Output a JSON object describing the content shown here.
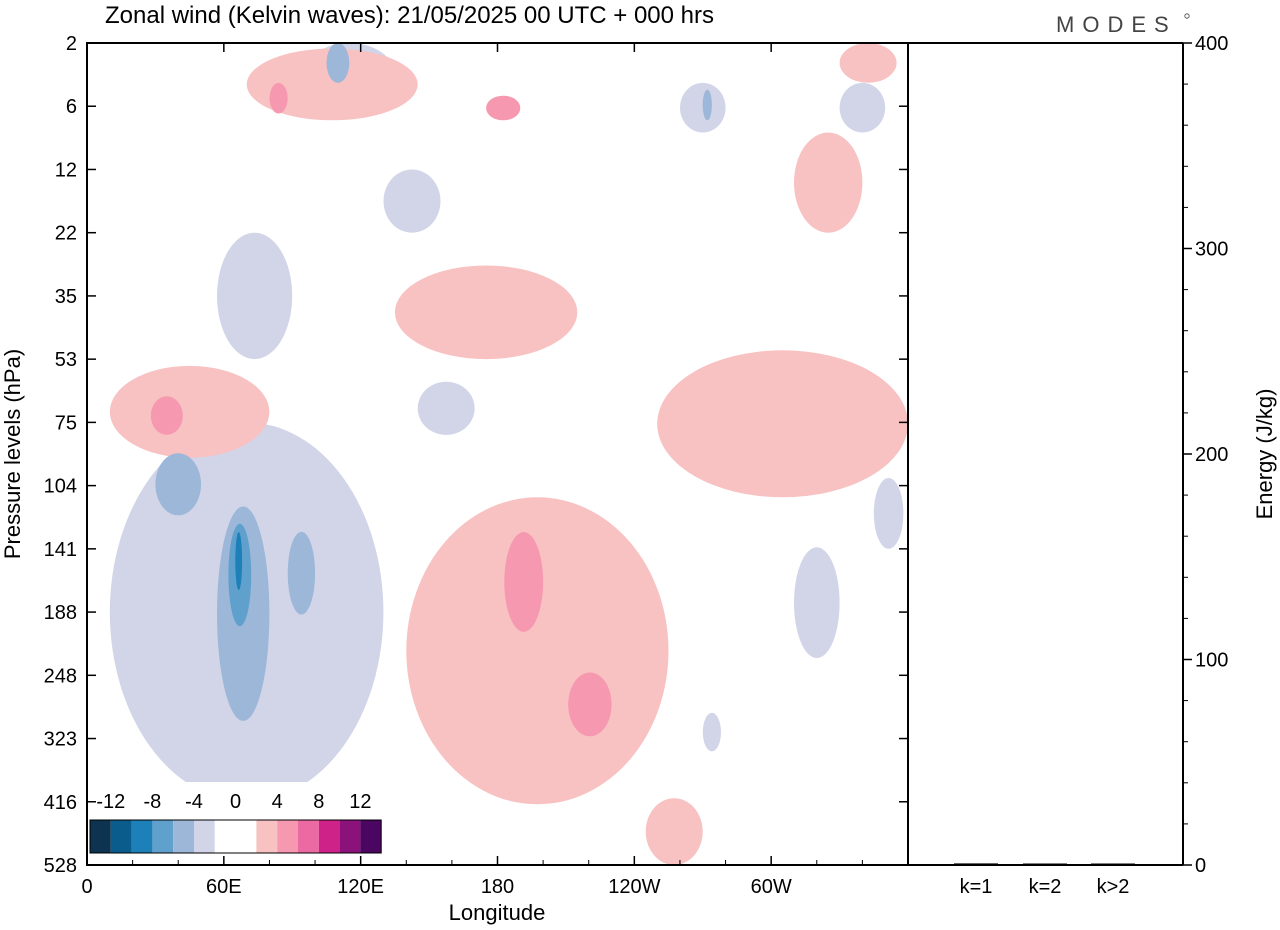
{
  "chart_data": [
    {
      "type": "heatmap",
      "title": "Zonal wind (Kelvin waves):  21/05/2025  00 UTC  + 000 hrs",
      "xlabel": "Longitude",
      "ylabel": "Pressure levels (hPa)",
      "x_ticks": [
        "0",
        "60E",
        "120E",
        "180",
        "120W",
        "60W"
      ],
      "y_ticks": [
        "2",
        "6",
        "12",
        "22",
        "35",
        "53",
        "75",
        "104",
        "141",
        "188",
        "248",
        "323",
        "416",
        "528"
      ],
      "xlim": [
        0,
        360
      ],
      "grid": false,
      "colorbar": {
        "labels": [
          "-12",
          "-8",
          "-4",
          "0",
          "4",
          "8",
          "12"
        ],
        "colors": [
          "#0d3350",
          "#0a5c8c",
          "#1d80b8",
          "#5fa0cc",
          "#9db7d8",
          "#d2d5e8",
          "#ffffff",
          "#ffffff",
          "#f8c2c2",
          "#f699b0",
          "#ec6aa2",
          "#cf2289",
          "#8a127a",
          "#4a0660"
        ]
      },
      "regions": [
        {
          "sign": "neg",
          "level": 1,
          "lon": [
            95,
            135
          ],
          "p": [
            2,
            6
          ]
        },
        {
          "sign": "neg",
          "level": 2,
          "lon": [
            105,
            115
          ],
          "p": [
            2,
            4
          ]
        },
        {
          "sign": "neg",
          "level": 1,
          "lon": [
            130,
            155
          ],
          "p": [
            12,
            22
          ]
        },
        {
          "sign": "neg",
          "level": 1,
          "lon": [
            57,
            90
          ],
          "p": [
            22,
            53
          ]
        },
        {
          "sign": "neg",
          "level": 1,
          "lon": [
            10,
            130
          ],
          "p": [
            75,
            416
          ]
        },
        {
          "sign": "neg",
          "level": 2,
          "lon": [
            30,
            50
          ],
          "p": [
            88,
            120
          ]
        },
        {
          "sign": "neg",
          "level": 2,
          "lon": [
            57,
            80
          ],
          "p": [
            115,
            300
          ]
        },
        {
          "sign": "neg",
          "level": 3,
          "lon": [
            62,
            72
          ],
          "p": [
            125,
            200
          ]
        },
        {
          "sign": "neg",
          "level": 4,
          "lon": [
            65,
            68
          ],
          "p": [
            130,
            170
          ]
        },
        {
          "sign": "neg",
          "level": 2,
          "lon": [
            88,
            100
          ],
          "p": [
            130,
            190
          ]
        },
        {
          "sign": "neg",
          "level": 1,
          "lon": [
            260,
            280
          ],
          "p": [
            4,
            8
          ]
        },
        {
          "sign": "neg",
          "level": 2,
          "lon": [
            270,
            274
          ],
          "p": [
            4.5,
            7
          ]
        },
        {
          "sign": "neg",
          "level": 1,
          "lon": [
            330,
            350
          ],
          "p": [
            4,
            8
          ]
        },
        {
          "sign": "neg",
          "level": 1,
          "lon": [
            145,
            170
          ],
          "p": [
            60,
            80
          ]
        },
        {
          "sign": "neg",
          "level": 1,
          "lon": [
            310,
            330
          ],
          "p": [
            140,
            230
          ]
        },
        {
          "sign": "neg",
          "level": 1,
          "lon": [
            345,
            358
          ],
          "p": [
            100,
            141
          ]
        },
        {
          "sign": "neg",
          "level": 1,
          "lon": [
            270,
            278
          ],
          "p": [
            290,
            340
          ]
        },
        {
          "sign": "pos",
          "level": 1,
          "lon": [
            70,
            145
          ],
          "p": [
            2.2,
            7
          ]
        },
        {
          "sign": "pos",
          "level": 2,
          "lon": [
            80,
            88
          ],
          "p": [
            4,
            6.5
          ]
        },
        {
          "sign": "pos",
          "level": 2,
          "lon": [
            175,
            190
          ],
          "p": [
            5,
            7
          ]
        },
        {
          "sign": "pos",
          "level": 1,
          "lon": [
            310,
            340
          ],
          "p": [
            8,
            22
          ]
        },
        {
          "sign": "pos",
          "level": 1,
          "lon": [
            330,
            355
          ],
          "p": [
            2,
            4
          ]
        },
        {
          "sign": "pos",
          "level": 1,
          "lon": [
            135,
            215
          ],
          "p": [
            28,
            53
          ]
        },
        {
          "sign": "pos",
          "level": 1,
          "lon": [
            10,
            80
          ],
          "p": [
            55,
            90
          ]
        },
        {
          "sign": "pos",
          "level": 2,
          "lon": [
            28,
            42
          ],
          "p": [
            65,
            80
          ]
        },
        {
          "sign": "pos",
          "level": 1,
          "lon": [
            140,
            255
          ],
          "p": [
            110,
            420
          ]
        },
        {
          "sign": "pos",
          "level": 2,
          "lon": [
            183,
            200
          ],
          "p": [
            130,
            205
          ]
        },
        {
          "sign": "pos",
          "level": 2,
          "lon": [
            211,
            230
          ],
          "p": [
            245,
            320
          ]
        },
        {
          "sign": "pos",
          "level": 1,
          "lon": [
            250,
            360
          ],
          "p": [
            50,
            110
          ]
        },
        {
          "sign": "pos",
          "level": 1,
          "lon": [
            245,
            270
          ],
          "p": [
            410,
            528
          ]
        }
      ]
    },
    {
      "type": "bar",
      "ylabel": "Energy (J/kg)",
      "categories": [
        "k=1",
        "k=2",
        "k>2"
      ],
      "values": [
        0.8,
        0.4,
        0.5
      ],
      "ylim": [
        0,
        400
      ],
      "y_ticks": [
        "0",
        "100",
        "200",
        "300",
        "400"
      ]
    }
  ],
  "logo": "MODES",
  "colors": {
    "axis": "#000000",
    "neg_light": "#d2d5e8",
    "pos_light": "#f8c2c2"
  }
}
